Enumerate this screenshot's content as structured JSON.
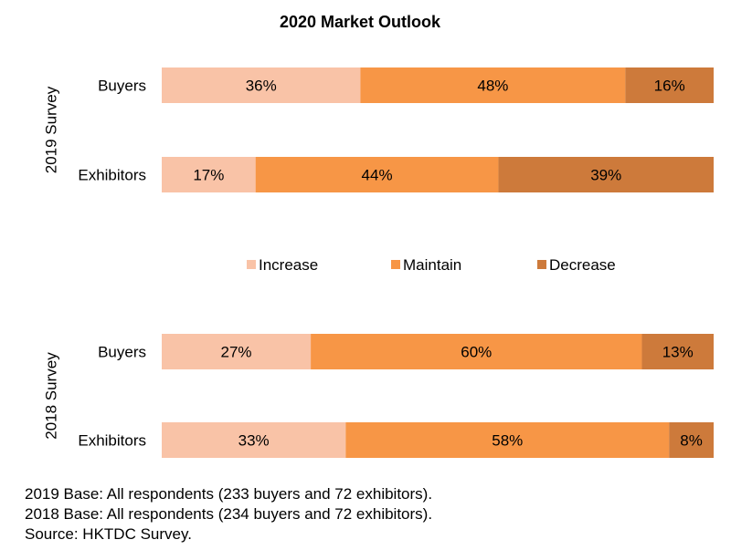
{
  "chart_data": {
    "type": "bar",
    "orientation": "horizontal",
    "stacked": true,
    "percent_stacked": true,
    "title": "2020 Market Outlook",
    "groups": [
      {
        "label": "2019 Survey",
        "categories": [
          "Buyers",
          "Exhibitors"
        ]
      },
      {
        "label": "2018 Survey",
        "categories": [
          "Buyers",
          "Exhibitors"
        ]
      }
    ],
    "series": [
      {
        "name": "Increase",
        "color": "#F9C3A7",
        "values": [
          36,
          17,
          27,
          33
        ]
      },
      {
        "name": "Maintain",
        "color": "#F79646",
        "values": [
          48,
          44,
          60,
          58
        ]
      },
      {
        "name": "Decrease",
        "color": "#CD7A3B",
        "values": [
          16,
          39,
          13,
          8
        ]
      }
    ],
    "value_suffix": "%",
    "xlim": [
      0,
      100
    ],
    "grid": false,
    "legend_placement": "middle"
  },
  "notes": [
    "2019 Base: All respondents (233 buyers and 72 exhibitors).",
    "2018 Base: All respondents (234 buyers and 72 exhibitors).",
    "Source: HKTDC Survey."
  ]
}
